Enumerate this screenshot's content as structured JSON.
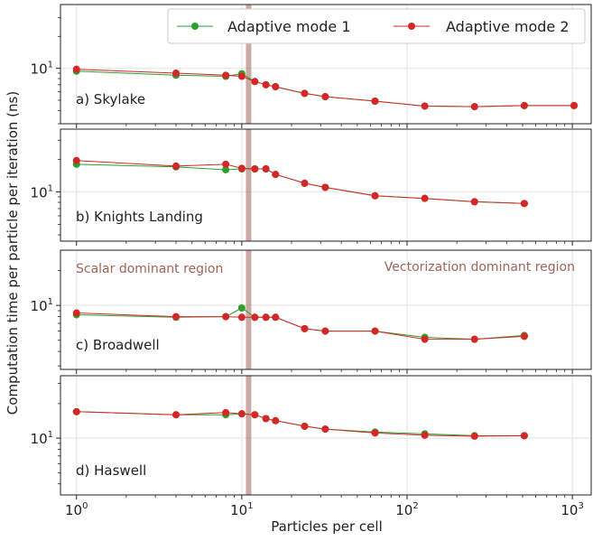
{
  "ylabel": "Computation time per particle per iteration (ns)",
  "xlabel": "Particles per cell",
  "legend": [
    {
      "name": "Adaptive mode 1",
      "color": "#2ca02c"
    },
    {
      "name": "Adaptive mode 2",
      "color": "#d62728"
    }
  ],
  "regions": {
    "scalar": "Scalar dominant region",
    "vector": "Vectorization dominant region",
    "color": "#a0645a",
    "band_x": 11
  },
  "x_ticks": [
    {
      "base": "10",
      "exp": "0"
    },
    {
      "base": "10",
      "exp": "1"
    },
    {
      "base": "10",
      "exp": "2"
    },
    {
      "base": "10",
      "exp": "3"
    }
  ],
  "y_tick_label": {
    "base": "10",
    "exp": "1"
  },
  "chart_data": [
    {
      "type": "line",
      "title": "a) Skylake",
      "xscale": "log",
      "yscale": "log",
      "xlim": [
        0.8,
        1300
      ],
      "ylim": [
        3.0,
        40
      ],
      "series": [
        {
          "name": "Adaptive mode 1",
          "color": "#2ca02c",
          "x": [
            1,
            4,
            8,
            10,
            12,
            14,
            16,
            24,
            32,
            64,
            128,
            256,
            512,
            1024
          ],
          "y": [
            9.4,
            8.6,
            8.4,
            8.9,
            7.5,
            7.0,
            6.7,
            5.8,
            5.4,
            4.9,
            4.4,
            4.35,
            4.45,
            4.45
          ]
        },
        {
          "name": "Adaptive mode 2",
          "color": "#d62728",
          "x": [
            1,
            4,
            8,
            10,
            12,
            14,
            16,
            24,
            32,
            64,
            128,
            256,
            512,
            1024
          ],
          "y": [
            9.8,
            9.0,
            8.6,
            8.4,
            7.5,
            7.0,
            6.7,
            5.8,
            5.4,
            4.9,
            4.4,
            4.35,
            4.45,
            4.45
          ]
        }
      ]
    },
    {
      "type": "line",
      "title": "b) Knights Landing",
      "xscale": "log",
      "yscale": "log",
      "xlim": [
        0.8,
        1300
      ],
      "ylim": [
        3.5,
        38
      ],
      "series": [
        {
          "name": "Adaptive mode 1",
          "color": "#2ca02c",
          "x": [
            1,
            4,
            8,
            10,
            12,
            14,
            16,
            24,
            32,
            64,
            128,
            256,
            512
          ],
          "y": [
            18.0,
            17.0,
            16.0,
            16.3,
            16.3,
            16.3,
            14.5,
            12.0,
            11.0,
            9.2,
            8.7,
            8.1,
            7.8
          ]
        },
        {
          "name": "Adaptive mode 2",
          "color": "#d62728",
          "x": [
            1,
            4,
            8,
            10,
            12,
            14,
            16,
            24,
            32,
            64,
            128,
            256,
            512
          ],
          "y": [
            19.5,
            17.3,
            18.0,
            16.5,
            16.3,
            16.3,
            14.5,
            12.0,
            11.0,
            9.2,
            8.7,
            8.1,
            7.8
          ]
        }
      ]
    },
    {
      "type": "line",
      "title": "c) Broadwell",
      "xscale": "log",
      "yscale": "log",
      "xlim": [
        0.8,
        1300
      ],
      "ylim": [
        2.8,
        30
      ],
      "series": [
        {
          "name": "Adaptive mode 1",
          "color": "#2ca02c",
          "x": [
            1,
            4,
            8,
            10,
            12,
            14,
            16,
            24,
            32,
            64,
            128,
            256,
            512
          ],
          "y": [
            8.3,
            7.9,
            8.0,
            9.5,
            7.9,
            7.9,
            7.9,
            6.3,
            6.0,
            6.0,
            5.3,
            5.1,
            5.5
          ]
        },
        {
          "name": "Adaptive mode 2",
          "color": "#d62728",
          "x": [
            1,
            4,
            8,
            10,
            12,
            14,
            16,
            24,
            32,
            64,
            128,
            256,
            512
          ],
          "y": [
            8.6,
            8.0,
            8.0,
            7.9,
            7.9,
            7.9,
            7.9,
            6.3,
            6.0,
            6.0,
            5.1,
            5.1,
            5.4
          ]
        }
      ]
    },
    {
      "type": "line",
      "title": "d) Haswell",
      "xscale": "log",
      "yscale": "log",
      "xlim": [
        0.8,
        1300
      ],
      "ylim": [
        3.2,
        35
      ],
      "series": [
        {
          "name": "Adaptive mode 1",
          "color": "#2ca02c",
          "x": [
            1,
            4,
            8,
            10,
            12,
            14,
            16,
            24,
            32,
            64,
            128,
            256,
            512
          ],
          "y": [
            17.0,
            16.0,
            16.0,
            16.3,
            16.0,
            14.8,
            14.2,
            12.7,
            12.0,
            11.3,
            10.9,
            10.5,
            10.5
          ]
        },
        {
          "name": "Adaptive mode 2",
          "color": "#d62728",
          "x": [
            1,
            4,
            8,
            10,
            12,
            14,
            16,
            24,
            32,
            64,
            128,
            256,
            512
          ],
          "y": [
            17.0,
            16.0,
            16.7,
            16.3,
            16.0,
            14.8,
            14.2,
            12.7,
            12.0,
            11.1,
            10.6,
            10.4,
            10.5
          ]
        }
      ]
    }
  ]
}
